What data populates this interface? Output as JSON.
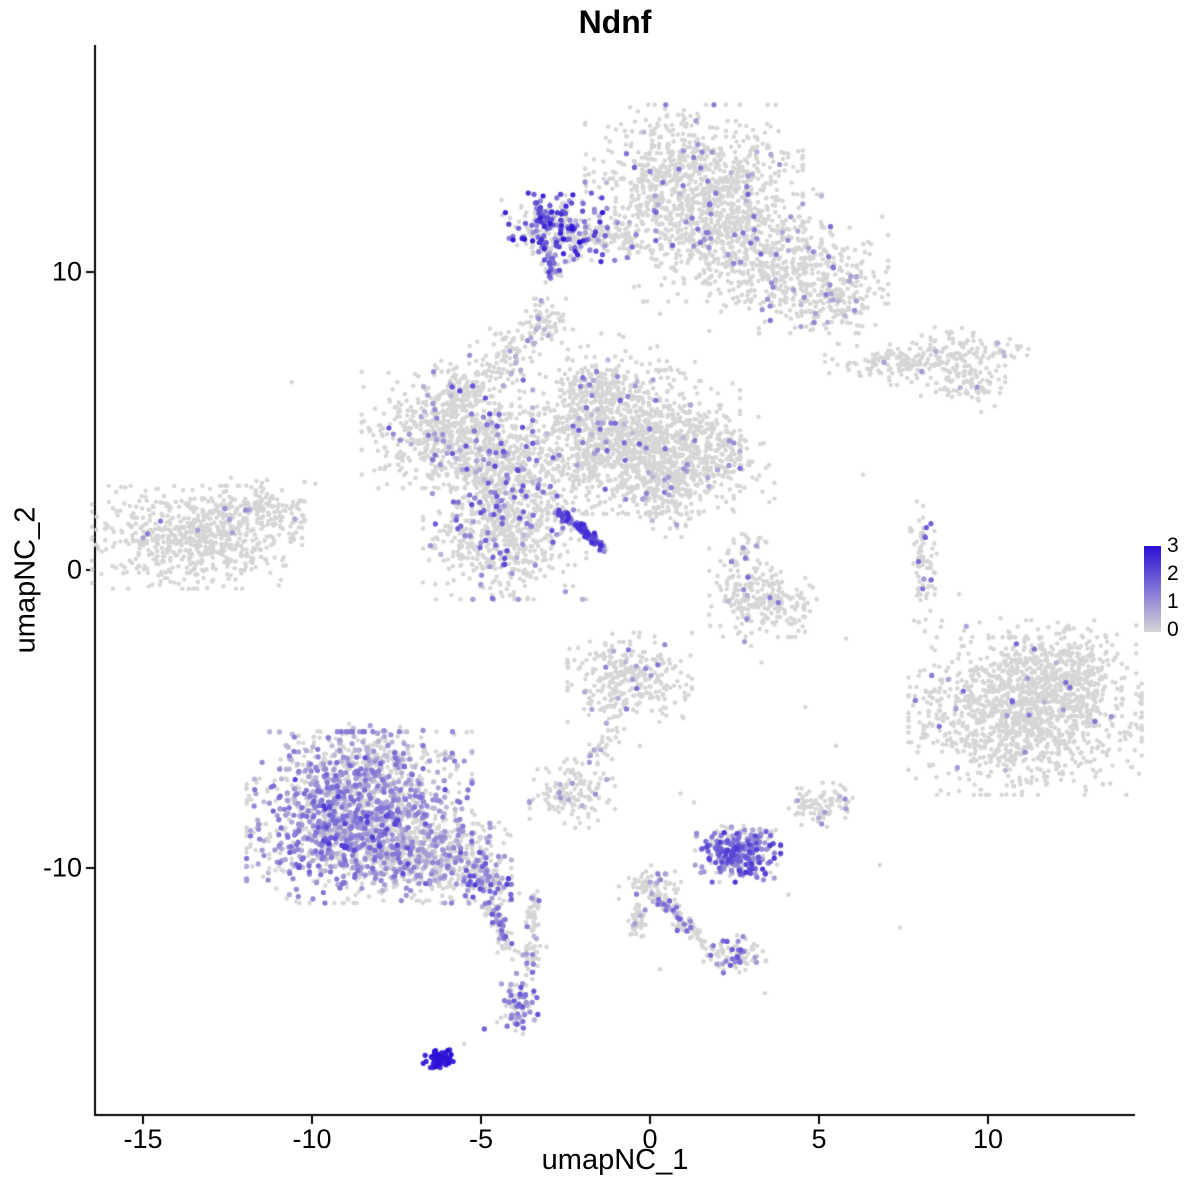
{
  "chart_data": {
    "type": "scatter",
    "title": "Ndnf",
    "xlabel": "umapNC_1",
    "ylabel": "umapNC_2",
    "xlim": [
      -16.42,
      14.35
    ],
    "ylim": [
      -18.29,
      17.62
    ],
    "x_ticks": [
      -15,
      -10,
      -5,
      0,
      5,
      10
    ],
    "y_ticks": [
      -10,
      0,
      10
    ],
    "grid": false,
    "legend": {
      "position": "right",
      "ticks": [
        "3",
        "2",
        "1",
        "0"
      ],
      "vmin": 0,
      "vmax": 3,
      "low_color": "#d6d6d6",
      "high_color": "#2a0fd6"
    },
    "point_style": {
      "gray_color": "#d6d6d6",
      "radius_gray": 2.2,
      "radius_expr": 2.6
    },
    "clusters": [
      {
        "name": "top-main",
        "type": "gauss",
        "n": 800,
        "cx": 1.3,
        "cy": 13.2,
        "sx": 1.4,
        "sy": 1.05,
        "frac": 0.05,
        "emin": 0.4,
        "emax": 1.8
      },
      {
        "name": "top-lower",
        "type": "gauss",
        "n": 520,
        "cx": 2.2,
        "cy": 11.2,
        "sx": 1.25,
        "sy": 0.95,
        "frac": 0.05,
        "emin": 0.4,
        "emax": 1.6
      },
      {
        "name": "top-right-arm",
        "type": "gauss",
        "n": 430,
        "cx": 4.4,
        "cy": 9.9,
        "sx": 1.15,
        "sy": 0.85,
        "frac": 0.06,
        "emin": 0.4,
        "emax": 1.8
      },
      {
        "name": "top-right-tip",
        "type": "gauss",
        "n": 90,
        "cx": 5.6,
        "cy": 9.0,
        "sx": 0.5,
        "sy": 0.4,
        "frac": 0.05,
        "emin": 0.4,
        "emax": 1.2
      },
      {
        "name": "ndnf-strip",
        "type": "gauss",
        "n": 210,
        "cx": -2.9,
        "cy": 11.5,
        "sx": 0.65,
        "sy": 0.5,
        "frac": 0.55,
        "emin": 0.7,
        "emax": 3.0
      },
      {
        "name": "strip-arm",
        "type": "gauss",
        "n": 170,
        "cx": -1.4,
        "cy": 11.2,
        "sx": 0.9,
        "sy": 0.35,
        "frac": 0.18,
        "emin": 0.5,
        "emax": 2.2
      },
      {
        "name": "strip-tail",
        "type": "line",
        "n": 45,
        "x1": -3.0,
        "y1": 10.9,
        "x2": -2.9,
        "y2": 9.8,
        "jitter": 0.12,
        "frac": 0.45,
        "emin": 0.6,
        "emax": 2.4
      },
      {
        "name": "blob-upper-mid",
        "type": "gauss",
        "n": 70,
        "cx": -3.2,
        "cy": 8.3,
        "sx": 0.4,
        "sy": 0.35,
        "frac": 0.08,
        "emin": 0.4,
        "emax": 1.2
      },
      {
        "name": "blob-above-mid",
        "type": "gauss",
        "n": 80,
        "cx": -4.3,
        "cy": 7.2,
        "sx": 0.45,
        "sy": 0.4,
        "frac": 0.08,
        "emin": 0.4,
        "emax": 1.2
      },
      {
        "name": "top-sparse",
        "type": "gauss",
        "n": 30,
        "cx": -0.9,
        "cy": 7.3,
        "sx": 1.1,
        "sy": 0.4,
        "frac": 0.05,
        "emin": 0.4,
        "emax": 1.0
      },
      {
        "name": "right-top-a",
        "type": "gauss",
        "n": 90,
        "cx": 6.9,
        "cy": 6.9,
        "sx": 0.75,
        "sy": 0.3,
        "frac": 0.04,
        "emin": 0.4,
        "emax": 1.0
      },
      {
        "name": "right-top-b",
        "type": "gauss",
        "n": 170,
        "cx": 8.9,
        "cy": 7.2,
        "sx": 1.0,
        "sy": 0.42,
        "frac": 0.04,
        "emin": 0.4,
        "emax": 1.0
      },
      {
        "name": "right-top-c",
        "type": "gauss",
        "n": 70,
        "cx": 9.4,
        "cy": 6.2,
        "sx": 0.6,
        "sy": 0.28,
        "frac": 0.04,
        "emin": 0.4,
        "emax": 1.0
      },
      {
        "name": "mid-main",
        "type": "gauss",
        "n": 1250,
        "cx": -0.9,
        "cy": 4.3,
        "sx": 1.55,
        "sy": 1.05,
        "frac": 0.035,
        "emin": 0.4,
        "emax": 1.8
      },
      {
        "name": "mid-top-bump",
        "type": "gauss",
        "n": 160,
        "cx": -1.5,
        "cy": 6.0,
        "sx": 0.55,
        "sy": 0.5,
        "frac": 0.05,
        "emin": 0.4,
        "emax": 1.6
      },
      {
        "name": "mid-right-arm",
        "type": "gauss",
        "n": 320,
        "cx": 1.5,
        "cy": 3.7,
        "sx": 0.95,
        "sy": 0.8,
        "frac": 0.03,
        "emin": 0.4,
        "emax": 1.4
      },
      {
        "name": "mid-left",
        "type": "gauss",
        "n": 560,
        "cx": -6.0,
        "cy": 4.7,
        "sx": 1.1,
        "sy": 0.85,
        "frac": 0.06,
        "emin": 0.4,
        "emax": 2.0
      },
      {
        "name": "mid-left-top",
        "type": "gauss",
        "n": 110,
        "cx": -5.5,
        "cy": 6.1,
        "sx": 0.5,
        "sy": 0.4,
        "frac": 0.08,
        "emin": 0.4,
        "emax": 2.2
      },
      {
        "name": "mid-connector",
        "type": "gauss",
        "n": 360,
        "cx": -4.6,
        "cy": 3.4,
        "sx": 0.8,
        "sy": 0.8,
        "frac": 0.14,
        "emin": 0.4,
        "emax": 2.2
      },
      {
        "name": "mid-lower",
        "type": "gauss",
        "n": 620,
        "cx": -4.3,
        "cy": 1.2,
        "sx": 1.05,
        "sy": 0.95,
        "frac": 0.12,
        "emin": 0.4,
        "emax": 2.2
      },
      {
        "name": "diag-streak",
        "type": "line",
        "n": 130,
        "x1": -2.7,
        "y1": 2.0,
        "x2": -1.4,
        "y2": 0.75,
        "jitter": 0.09,
        "frac": 0.8,
        "emin": 0.8,
        "emax": 2.6
      },
      {
        "name": "mid-right-blob",
        "type": "gauss",
        "n": 150,
        "cx": 0.3,
        "cy": 2.6,
        "sx": 0.6,
        "sy": 0.65,
        "frac": 0.05,
        "emin": 0.4,
        "emax": 1.4
      },
      {
        "name": "left-main",
        "type": "gauss",
        "n": 680,
        "cx": -13.4,
        "cy": 1.1,
        "sx": 1.35,
        "sy": 0.75,
        "frac": 0.015,
        "emin": 0.4,
        "emax": 1.6
      },
      {
        "name": "left-arm",
        "type": "gauss",
        "n": 130,
        "cx": -11.6,
        "cy": 2.1,
        "sx": 0.6,
        "sy": 0.4,
        "frac": 0.02,
        "emin": 0.4,
        "emax": 1.2
      },
      {
        "name": "center-right-a",
        "type": "gauss",
        "n": 190,
        "cx": 2.9,
        "cy": -0.6,
        "sx": 0.5,
        "sy": 0.85,
        "frac": 0.07,
        "emin": 0.4,
        "emax": 1.8
      },
      {
        "name": "center-right-b",
        "type": "gauss",
        "n": 90,
        "cx": 3.9,
        "cy": -1.1,
        "sx": 0.45,
        "sy": 0.5,
        "frac": 0.05,
        "emin": 0.4,
        "emax": 1.4
      },
      {
        "name": "right-sliver",
        "type": "gauss",
        "n": 75,
        "cx": 8.1,
        "cy": 0.2,
        "sx": 0.17,
        "sy": 0.85,
        "frac": 0.12,
        "emin": 0.5,
        "emax": 2.0
      },
      {
        "name": "right-big-main",
        "type": "gauss",
        "n": 1150,
        "cx": 11.1,
        "cy": -4.9,
        "sx": 1.5,
        "sy": 1.15,
        "frac": 0.012,
        "emin": 0.4,
        "emax": 1.8
      },
      {
        "name": "right-big-top",
        "type": "gauss",
        "n": 320,
        "cx": 12.2,
        "cy": -3.3,
        "sx": 0.95,
        "sy": 0.7,
        "frac": 0.012,
        "emin": 0.4,
        "emax": 1.8
      },
      {
        "name": "right-halo",
        "type": "gauss",
        "n": 50,
        "cx": 9.0,
        "cy": -3.8,
        "sx": 0.85,
        "sy": 1.3,
        "frac": 0.05,
        "emin": 0.4,
        "emax": 1.4
      },
      {
        "name": "center-small",
        "type": "gauss",
        "n": 300,
        "cx": -0.6,
        "cy": -3.6,
        "sx": 0.8,
        "sy": 0.65,
        "frac": 0.05,
        "emin": 0.4,
        "emax": 2.0
      },
      {
        "name": "center-small-tail",
        "type": "line",
        "n": 40,
        "x1": -0.6,
        "y1": -4.6,
        "x2": -1.9,
        "y2": -6.6,
        "jitter": 0.16,
        "frac": 0.06,
        "emin": 0.4,
        "emax": 1.2
      },
      {
        "name": "small-blob-i",
        "type": "gauss",
        "n": 140,
        "cx": -2.3,
        "cy": -7.5,
        "sx": 0.55,
        "sy": 0.5,
        "frac": 0.04,
        "emin": 0.4,
        "emax": 1.2
      },
      {
        "name": "bottomleft-main",
        "type": "gauss",
        "n": 1500,
        "cx": -8.6,
        "cy": -8.3,
        "sx": 1.45,
        "sy": 1.25,
        "frac": 0.5,
        "emin": 0.3,
        "emax": 1.6
      },
      {
        "name": "bottomleft-dark",
        "type": "gauss",
        "n": 70,
        "cx": -8.8,
        "cy": -8.6,
        "sx": 1.2,
        "sy": 1.0,
        "frac": 1.0,
        "emin": 1.4,
        "emax": 2.4
      },
      {
        "name": "bottomleft-right",
        "type": "gauss",
        "n": 430,
        "cx": -6.4,
        "cy": -9.6,
        "sx": 1.0,
        "sy": 0.65,
        "frac": 0.3,
        "emin": 0.3,
        "emax": 1.4
      },
      {
        "name": "bottomleft-top-sparse",
        "type": "gauss",
        "n": 140,
        "cx": -8.1,
        "cy": -6.2,
        "sx": 1.0,
        "sy": 0.45,
        "frac": 0.3,
        "emin": 0.3,
        "emax": 1.2
      },
      {
        "name": "trail-a",
        "type": "gauss",
        "n": 110,
        "cx": -4.9,
        "cy": -10.4,
        "sx": 0.45,
        "sy": 0.4,
        "frac": 0.45,
        "emin": 0.5,
        "emax": 2.4
      },
      {
        "name": "trail-b",
        "type": "line",
        "n": 70,
        "x1": -4.7,
        "y1": -11.0,
        "x2": -4.3,
        "y2": -12.8,
        "jitter": 0.14,
        "frac": 0.35,
        "emin": 0.5,
        "emax": 2.0
      },
      {
        "name": "low-blob",
        "type": "gauss",
        "n": 85,
        "cx": -3.9,
        "cy": -14.6,
        "sx": 0.3,
        "sy": 0.5,
        "frac": 0.45,
        "emin": 0.5,
        "emax": 2.0
      },
      {
        "name": "dark-blue-blob",
        "type": "gauss",
        "n": 70,
        "cx": -6.2,
        "cy": -16.4,
        "sx": 0.22,
        "sy": 0.13,
        "frac": 1.0,
        "emin": 2.5,
        "emax": 3.0
      },
      {
        "name": "purple-cluster-k",
        "type": "gauss",
        "n": 240,
        "cx": 2.6,
        "cy": -9.6,
        "sx": 0.55,
        "sy": 0.38,
        "frac": 0.8,
        "emin": 0.6,
        "emax": 2.4
      },
      {
        "name": "k-top",
        "type": "gauss",
        "n": 50,
        "cx": 2.7,
        "cy": -8.9,
        "sx": 0.45,
        "sy": 0.2,
        "frac": 0.25,
        "emin": 0.4,
        "emax": 1.4
      },
      {
        "name": "gray-blob-l",
        "type": "gauss",
        "n": 90,
        "cx": 5.1,
        "cy": -7.9,
        "sx": 0.45,
        "sy": 0.33,
        "frac": 0.05,
        "emin": 0.4,
        "emax": 1.2
      },
      {
        "name": "arm-start",
        "type": "gauss",
        "n": 70,
        "cx": 0.0,
        "cy": -10.6,
        "sx": 0.4,
        "sy": 0.3,
        "frac": 0.12,
        "emin": 0.4,
        "emax": 1.6
      },
      {
        "name": "arm-diag",
        "type": "line",
        "n": 90,
        "x1": 0.2,
        "y1": -10.9,
        "x2": 1.4,
        "y2": -12.3,
        "jitter": 0.13,
        "frac": 0.2,
        "emin": 0.4,
        "emax": 1.8
      },
      {
        "name": "arm-tip",
        "type": "gauss",
        "n": 90,
        "cx": 2.4,
        "cy": -12.9,
        "sx": 0.45,
        "sy": 0.3,
        "frac": 0.3,
        "emin": 0.5,
        "emax": 2.0
      },
      {
        "name": "arm-vert",
        "type": "line",
        "n": 40,
        "x1": -0.3,
        "y1": -11.3,
        "x2": -0.4,
        "y2": -12.3,
        "jitter": 0.12,
        "frac": 0.1,
        "emin": 0.4,
        "emax": 1.2
      },
      {
        "name": "n-vert",
        "type": "line",
        "n": 45,
        "x1": -3.4,
        "y1": -10.9,
        "x2": -3.5,
        "y2": -12.2,
        "jitter": 0.1,
        "frac": 0.15,
        "emin": 0.4,
        "emax": 1.6
      },
      {
        "name": "n-blob",
        "type": "gauss",
        "n": 35,
        "cx": -3.5,
        "cy": -12.9,
        "sx": 0.25,
        "sy": 0.25,
        "frac": 0.15,
        "emin": 0.4,
        "emax": 1.4
      },
      {
        "name": "strays",
        "type": "points",
        "pts": [
          [
            -10.6,
            6.3,
            0
          ],
          [
            4.7,
            8.7,
            0
          ],
          [
            6.3,
            3.2,
            0
          ],
          [
            7.9,
            2.3,
            0
          ],
          [
            7.7,
            1.4,
            0
          ],
          [
            10.2,
            5.5,
            0
          ],
          [
            9.8,
            5.3,
            0
          ],
          [
            5.8,
            -2.3,
            0
          ],
          [
            4.6,
            -4.6,
            0
          ],
          [
            3.3,
            -3.1,
            0
          ],
          [
            2.8,
            -2.4,
            0.9
          ],
          [
            6.8,
            -9.9,
            0
          ],
          [
            4.1,
            -10.9,
            0
          ],
          [
            0.9,
            -7.5,
            0
          ],
          [
            1.3,
            -7.8,
            0
          ],
          [
            -0.3,
            -5.9,
            0
          ],
          [
            5.5,
            -5.9,
            0
          ],
          [
            8.6,
            -7.4,
            0
          ],
          [
            -4.9,
            -15.4,
            1.8
          ],
          [
            -5.5,
            -15.9,
            0
          ],
          [
            3.4,
            -14.2,
            0
          ],
          [
            0.3,
            -13.4,
            0
          ],
          [
            -12.4,
            3.1,
            0
          ],
          [
            -9.9,
            2.9,
            0
          ],
          [
            -0.2,
            9.0,
            0
          ],
          [
            0.3,
            8.6,
            0
          ],
          [
            12.9,
            -7.4,
            0
          ],
          [
            13.2,
            -6.8,
            0
          ],
          [
            7.4,
            -12.0,
            0
          ]
        ]
      }
    ]
  }
}
